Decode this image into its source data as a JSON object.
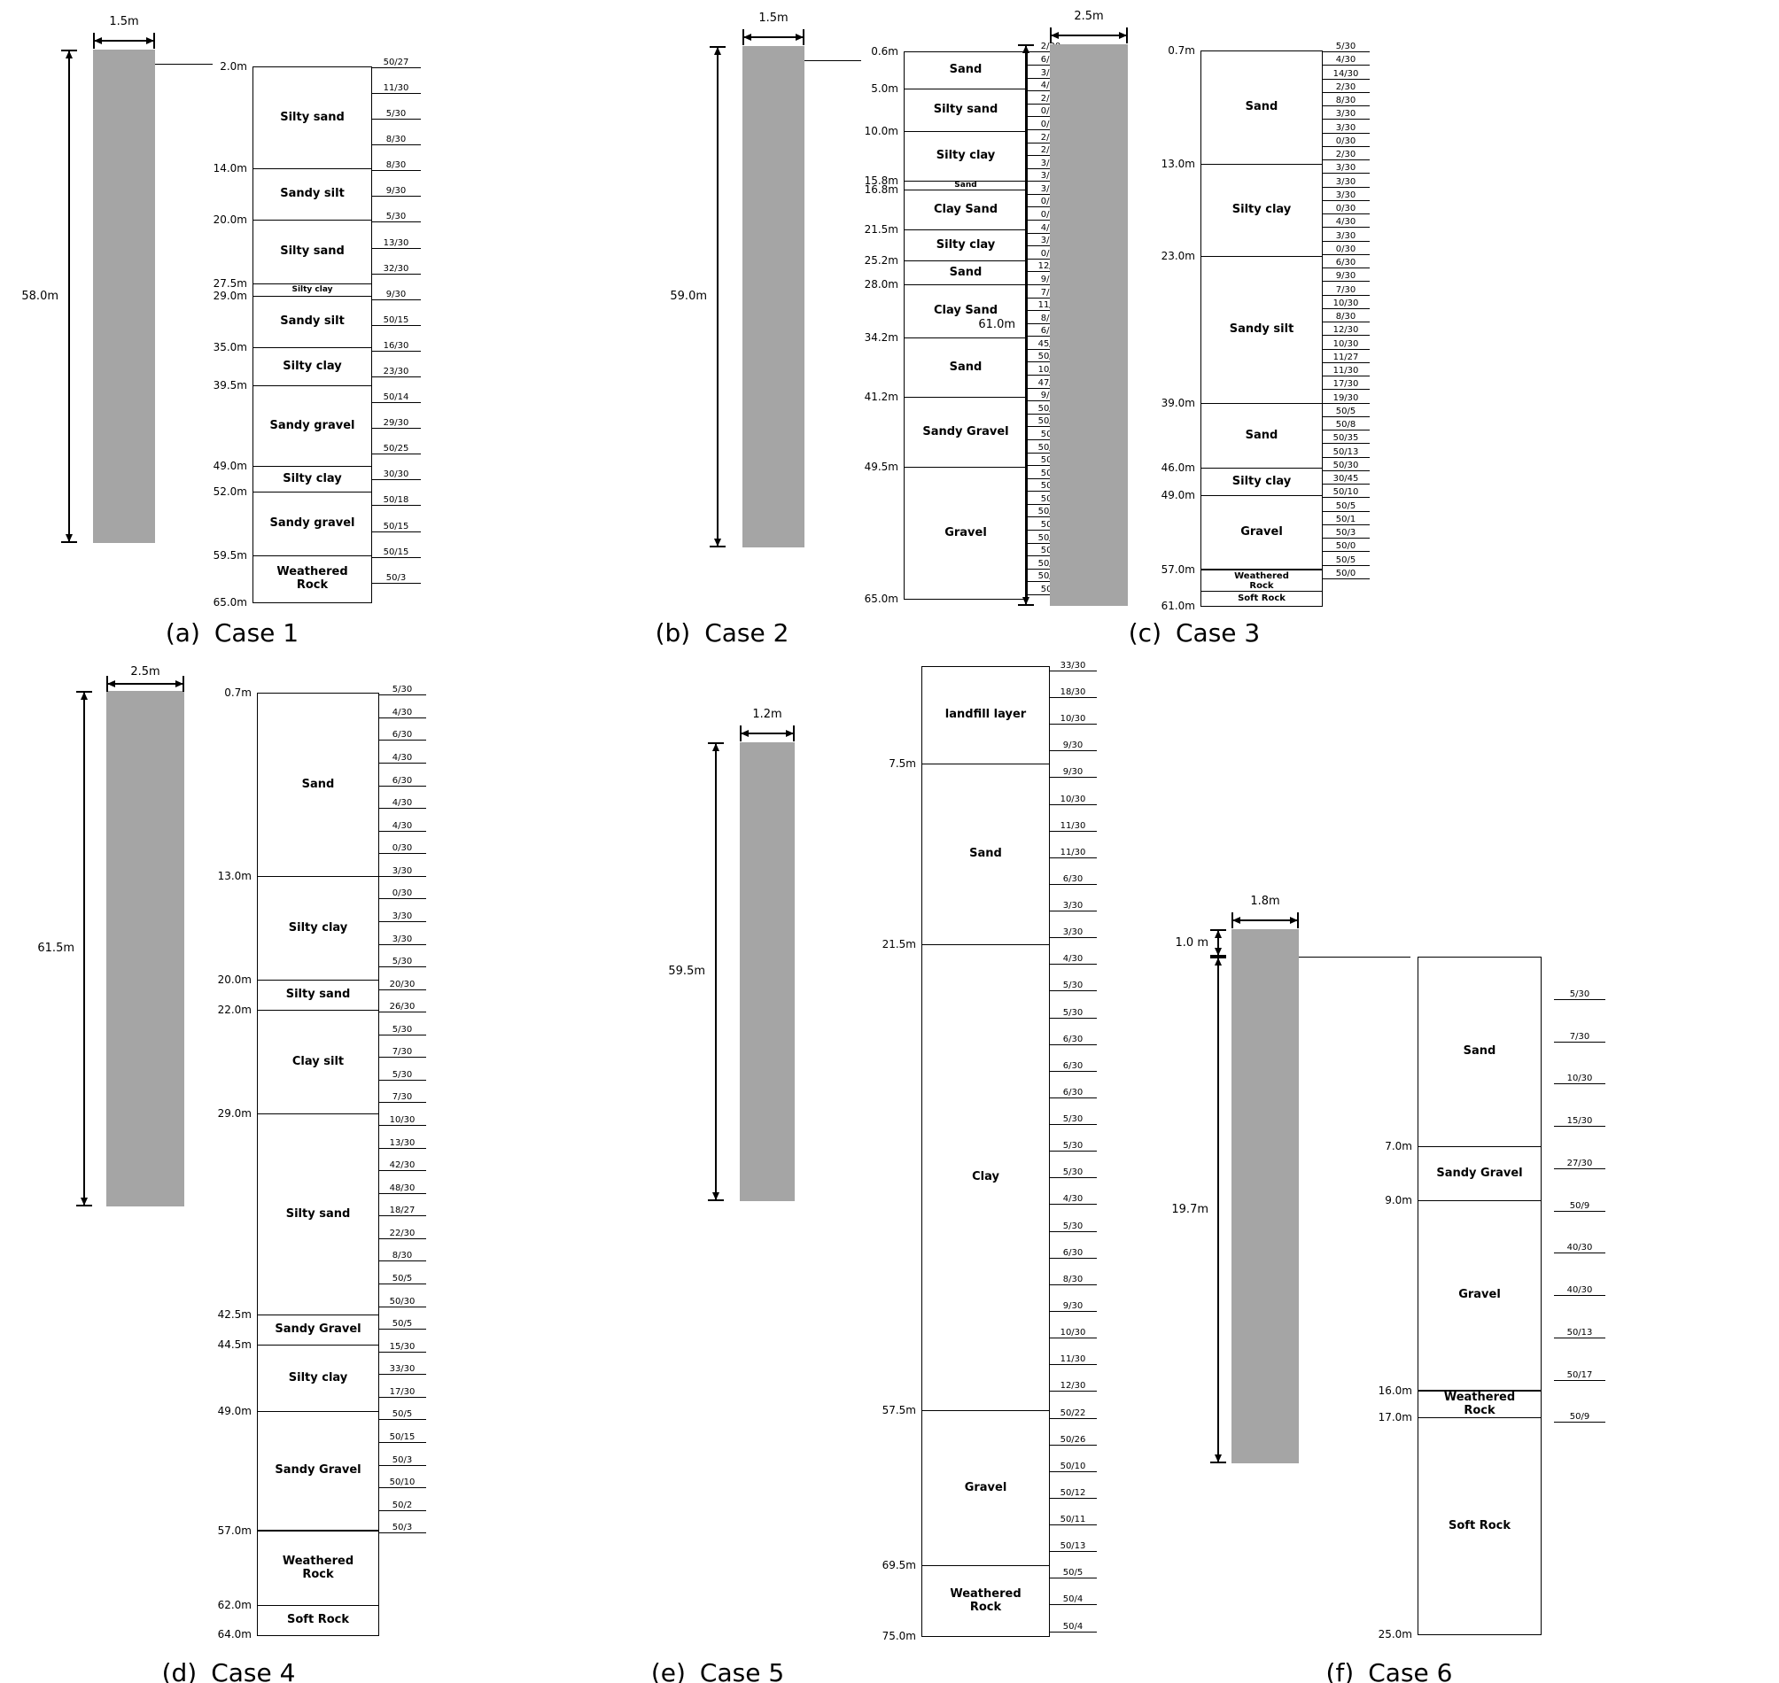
{
  "figure": {
    "background": "#ffffff",
    "pile_color": "#a5a5a5",
    "line_color": "#000000",
    "cases": [
      {
        "caption": {
          "prefix": "(a)",
          "title": "Case 1"
        },
        "pile": {
          "width_label": "1.5m",
          "length_label": "58.0m"
        },
        "column": {
          "top_depth": 2.0,
          "top_label": "2.0m",
          "layers": [
            {
              "name": "Silty sand",
              "to": 14.0,
              "label": "14.0m"
            },
            {
              "name": "Sandy silt",
              "to": 20.0,
              "label": "20.0m"
            },
            {
              "name": "Silty sand",
              "to": 27.5,
              "label": "27.5m"
            },
            {
              "name": "Silty clay",
              "to": 29.0,
              "label": "29.0m"
            },
            {
              "name": "Sandy silt",
              "to": 35.0,
              "label": "35.0m"
            },
            {
              "name": "Silty clay",
              "to": 39.5,
              "label": "39.5m"
            },
            {
              "name": "Sandy gravel",
              "to": 49.0,
              "label": "49.0m"
            },
            {
              "name": "Silty clay",
              "to": 52.0,
              "label": "52.0m"
            },
            {
              "name": "Sandy gravel",
              "to": 59.5,
              "label": "59.5m"
            },
            {
              "name": "Weathered\nRock",
              "to": 65.0,
              "label": "65.0m"
            }
          ]
        },
        "spt": {
          "values": [
            "50/27",
            "11/30",
            "5/30",
            "8/30",
            "8/30",
            "9/30",
            "5/30",
            "13/30",
            "32/30",
            "9/30",
            "50/15",
            "16/30",
            "23/30",
            "50/14",
            "29/30",
            "50/25",
            "30/30",
            "50/18",
            "50/15",
            "50/15",
            "50/3"
          ]
        }
      },
      {
        "caption": {
          "prefix": "(b)",
          "title": "Case 2"
        },
        "pile": {
          "width_label": "1.5m",
          "length_label": "59.0m"
        },
        "column": {
          "top_depth": 0.6,
          "top_label": "0.6m",
          "layers": [
            {
              "name": "Sand",
              "to": 5.0,
              "label": "5.0m"
            },
            {
              "name": "Silty sand",
              "to": 10.0,
              "label": "10.0m"
            },
            {
              "name": "Silty clay",
              "to": 15.8,
              "label": "15.8m"
            },
            {
              "name": "Sand",
              "to": 16.8,
              "label": "16.8m"
            },
            {
              "name": "Clay Sand",
              "to": 21.5,
              "label": "21.5m"
            },
            {
              "name": "Silty clay",
              "to": 25.2,
              "label": "25.2m"
            },
            {
              "name": "Sand",
              "to": 28.0,
              "label": "28.0m"
            },
            {
              "name": "Clay Sand",
              "to": 34.2,
              "label": "34.2m"
            },
            {
              "name": "Sand",
              "to": 41.2,
              "label": "41.2m"
            },
            {
              "name": "Sandy Gravel",
              "to": 49.5,
              "label": "49.5m"
            },
            {
              "name": "Gravel",
              "to": 65.0,
              "label": "65.0m"
            }
          ]
        },
        "spt": {
          "values": [
            "2/30",
            "6/30",
            "3/30",
            "4/30",
            "2/30",
            "0/30",
            "0/30",
            "2/30",
            "2/30",
            "3/30",
            "3/30",
            "3/30",
            "0/30",
            "0/30",
            "4/30",
            "3/30",
            "0/30",
            "12/30",
            "9/30",
            "7/30",
            "11/30",
            "8/30",
            "6/30",
            "45/30",
            "50/27",
            "10/30",
            "47/30",
            "9/30",
            "50/12",
            "50/27",
            "50/3",
            "50/13",
            "50/0",
            "50/4",
            "50/9",
            "50/5",
            "50/11",
            "50/3",
            "50/18",
            "50/3",
            "50/14",
            "50/10",
            "50/2"
          ]
        }
      },
      {
        "caption": {
          "prefix": "(c)",
          "title": "Case 3"
        },
        "pile": {
          "width_label": "2.5m",
          "length_label": "61.0m"
        },
        "column": {
          "top_depth": 0.7,
          "top_label": "0.7m",
          "layers": [
            {
              "name": "Sand",
              "to": 13.0,
              "label": "13.0m"
            },
            {
              "name": "Silty clay",
              "to": 23.0,
              "label": "23.0m"
            },
            {
              "name": "Sandy silt",
              "to": 39.0,
              "label": "39.0m"
            },
            {
              "name": "Sand",
              "to": 46.0,
              "label": "46.0m"
            },
            {
              "name": "Silty clay",
              "to": 49.0,
              "label": "49.0m"
            },
            {
              "name": "Gravel",
              "to": 57.0,
              "label": "57.0m"
            },
            {
              "name": "Weathered\nRock",
              "to": 59.4,
              "label": ""
            },
            {
              "name": "Soft Rock",
              "to": 61.0,
              "label": "61.0m"
            }
          ]
        },
        "spt": {
          "values": [
            "5/30",
            "4/30",
            "14/30",
            "2/30",
            "8/30",
            "3/30",
            "3/30",
            "0/30",
            "2/30",
            "3/30",
            "3/30",
            "3/30",
            "0/30",
            "4/30",
            "3/30",
            "0/30",
            "6/30",
            "9/30",
            "7/30",
            "10/30",
            "8/30",
            "12/30",
            "10/30",
            "11/27",
            "11/30",
            "17/30",
            "19/30",
            "50/5",
            "50/8",
            "50/35",
            "50/13",
            "50/30",
            "30/45",
            "50/10",
            "50/5",
            "50/1",
            "50/3",
            "50/0",
            "50/5",
            "50/0"
          ]
        }
      },
      {
        "caption": {
          "prefix": "(d)",
          "title": "Case 4"
        },
        "pile": {
          "width_label": "2.5m",
          "length_label": "61.5m"
        },
        "column": {
          "top_depth": 0.7,
          "top_label": "0.7m",
          "layers": [
            {
              "name": "Sand",
              "to": 13.0,
              "label": "13.0m"
            },
            {
              "name": "Silty clay",
              "to": 20.0,
              "label": "20.0m"
            },
            {
              "name": "Silty sand",
              "to": 22.0,
              "label": "22.0m"
            },
            {
              "name": "Clay silt",
              "to": 29.0,
              "label": "29.0m"
            },
            {
              "name": "Silty sand",
              "to": 42.5,
              "label": "42.5m"
            },
            {
              "name": "Sandy Gravel",
              "to": 44.5,
              "label": "44.5m"
            },
            {
              "name": "Silty clay",
              "to": 49.0,
              "label": "49.0m"
            },
            {
              "name": "Sandy Gravel",
              "to": 57.0,
              "label": "57.0m"
            },
            {
              "name": "Weathered\nRock",
              "to": 62.0,
              "label": "62.0m"
            },
            {
              "name": "Soft Rock",
              "to": 64.0,
              "label": "64.0m"
            }
          ]
        },
        "spt": {
          "values": [
            "5/30",
            "4/30",
            "6/30",
            "4/30",
            "6/30",
            "4/30",
            "4/30",
            "0/30",
            "3/30",
            "0/30",
            "3/30",
            "3/30",
            "5/30",
            "20/30",
            "26/30",
            "5/30",
            "7/30",
            "5/30",
            "7/30",
            "10/30",
            "13/30",
            "42/30",
            "48/30",
            "18/27",
            "22/30",
            "8/30",
            "50/5",
            "50/30",
            "50/5",
            "15/30",
            "33/30",
            "17/30",
            "50/5",
            "50/15",
            "50/3",
            "50/10",
            "50/2",
            "50/3"
          ]
        }
      },
      {
        "caption": {
          "prefix": "(e)",
          "title": "Case 5"
        },
        "pile": {
          "width_label": "1.2m",
          "length_label": "59.5m"
        },
        "column": {
          "top_depth": 0.0,
          "top_label": "",
          "layers": [
            {
              "name": "landfill layer",
              "to": 7.5,
              "label": "7.5m"
            },
            {
              "name": "Sand",
              "to": 21.5,
              "label": "21.5m"
            },
            {
              "name": "Clay",
              "to": 57.5,
              "label": "57.5m"
            },
            {
              "name": "Gravel",
              "to": 69.5,
              "label": "69.5m"
            },
            {
              "name": "Weathered\nRock",
              "to": 75.0,
              "label": "75.0m"
            }
          ]
        },
        "spt": {
          "values": [
            "33/30",
            "18/30",
            "10/30",
            "9/30",
            "9/30",
            "10/30",
            "11/30",
            "11/30",
            "6/30",
            "3/30",
            "3/30",
            "4/30",
            "5/30",
            "5/30",
            "6/30",
            "6/30",
            "6/30",
            "5/30",
            "5/30",
            "5/30",
            "4/30",
            "5/30",
            "6/30",
            "8/30",
            "9/30",
            "10/30",
            "11/30",
            "12/30",
            "50/22",
            "50/26",
            "50/10",
            "50/12",
            "50/11",
            "50/13",
            "50/5",
            "50/4",
            "50/4"
          ]
        }
      },
      {
        "caption": {
          "prefix": "(f)",
          "title": "Case 6"
        },
        "pile": {
          "width_label": "1.8m",
          "length_label": "19.7m",
          "offset_label": "1.0 m"
        },
        "column": {
          "top_depth": 0.0,
          "top_label": "",
          "layers": [
            {
              "name": "Sand",
              "to": 7.0,
              "label": "7.0m"
            },
            {
              "name": "Sandy Gravel",
              "to": 9.0,
              "label": "9.0m"
            },
            {
              "name": "Gravel",
              "to": 16.0,
              "label": "16.0m"
            },
            {
              "name": "Weathered\nRock",
              "to": 17.0,
              "label": "17.0m"
            },
            {
              "name": "Soft Rock",
              "to": 25.0,
              "label": "25.0m"
            }
          ]
        },
        "spt": {
          "values": [
            "5/30",
            "7/30",
            "10/30",
            "15/30",
            "27/30",
            "50/9",
            "40/30",
            "40/30",
            "50/13",
            "50/17",
            "50/9"
          ]
        }
      }
    ]
  }
}
